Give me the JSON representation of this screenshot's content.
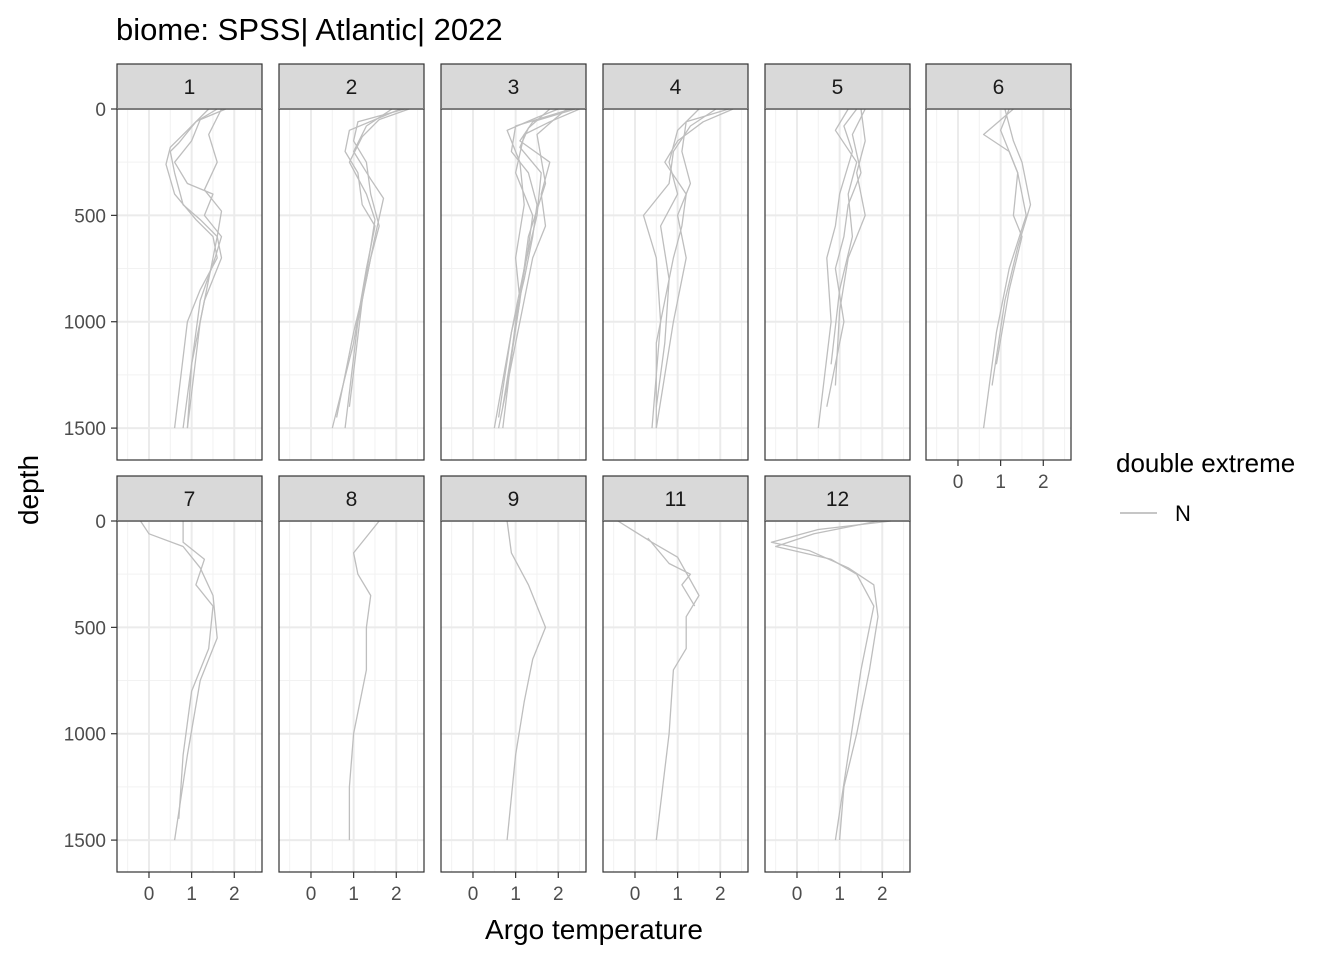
{
  "chart_data": {
    "type": "line",
    "title": "biome: SPSS| Atlantic| 2022",
    "xlabel": "Argo temperature",
    "ylabel": "depth",
    "facet_variable": "month",
    "y_reversed": true,
    "ylim": [
      0,
      1650
    ],
    "xlim": [
      -0.75,
      2.65
    ],
    "x_ticks": [
      0,
      1,
      2
    ],
    "y_ticks": [
      0,
      500,
      1000,
      1500
    ],
    "grid": true,
    "legend": {
      "title": "double extreme",
      "placement": "right",
      "entries": [
        {
          "label": "N",
          "color": "#bebebe"
        }
      ]
    },
    "line_color": "#bebebe",
    "panels": [
      {
        "label": "1",
        "profiles": [
          {
            "x": [
              1.8,
              1.2,
              1.0,
              0.6,
              0.9,
              1.5,
              1.3,
              1.7,
              1.55,
              1.2,
              1.0,
              0.8
            ],
            "y": [
              0,
              50,
              150,
              250,
              350,
              400,
              500,
              600,
              700,
              900,
              1200,
              1500
            ]
          },
          {
            "x": [
              1.6,
              1.1,
              0.7,
              0.5,
              0.6,
              0.8,
              1.2,
              1.6,
              1.7,
              1.3,
              1.0,
              0.9
            ],
            "y": [
              0,
              60,
              160,
              200,
              300,
              450,
              520,
              600,
              700,
              900,
              1200,
              1500
            ]
          },
          {
            "x": [
              1.4,
              0.9,
              0.5,
              0.4,
              0.6,
              1.1,
              1.5,
              1.6,
              1.2,
              0.9,
              0.6
            ],
            "y": [
              0,
              100,
              180,
              260,
              400,
              520,
              600,
              700,
              850,
              1000,
              1500
            ]
          },
          {
            "x": [
              1.7,
              1.4,
              1.6,
              1.3,
              1.7,
              1.6,
              1.5,
              1.2,
              0.9
            ],
            "y": [
              0,
              120,
              250,
              380,
              480,
              600,
              700,
              1000,
              1500
            ]
          }
        ]
      },
      {
        "label": "2",
        "profiles": [
          {
            "x": [
              2.2,
              1.1,
              1.0,
              1.3,
              1.4,
              1.6,
              1.4,
              1.1,
              0.8
            ],
            "y": [
              0,
              60,
              150,
              250,
              400,
              550,
              700,
              1000,
              1500
            ]
          },
          {
            "x": [
              2.1,
              0.9,
              0.8,
              1.1,
              1.2,
              1.5,
              1.3,
              1.0,
              0.5
            ],
            "y": [
              0,
              100,
              200,
              300,
              450,
              550,
              750,
              1100,
              1500
            ]
          },
          {
            "x": [
              1.9,
              1.3,
              1.0,
              1.4,
              1.7,
              1.5,
              1.3,
              1.0,
              0.6
            ],
            "y": [
              0,
              80,
              200,
              330,
              420,
              600,
              800,
              1050,
              1450
            ]
          },
          {
            "x": [
              2.3,
              1.6,
              1.2,
              0.9,
              1.3,
              1.5,
              1.2,
              0.9
            ],
            "y": [
              0,
              50,
              130,
              250,
              400,
              520,
              900,
              1400
            ]
          }
        ]
      },
      {
        "label": "3",
        "profiles": [
          {
            "x": [
              2.4,
              1.4,
              1.1,
              1.8,
              1.6,
              1.7,
              1.4,
              1.1,
              0.6
            ],
            "y": [
              0,
              60,
              150,
              250,
              400,
              550,
              700,
              1000,
              1500
            ]
          },
          {
            "x": [
              2.3,
              1.0,
              0.9,
              1.3,
              1.5,
              1.4,
              1.2,
              0.9,
              0.5
            ],
            "y": [
              0,
              80,
              200,
              300,
              450,
              600,
              800,
              1050,
              1500
            ]
          },
          {
            "x": [
              2.0,
              1.5,
              0.8,
              1.1,
              1.2,
              1.0,
              1.1,
              0.7
            ],
            "y": [
              0,
              40,
              100,
              250,
              450,
              700,
              900,
              1400
            ]
          },
          {
            "x": [
              2.5,
              1.8,
              1.2,
              1.0,
              1.4,
              1.3,
              1.0,
              0.7
            ],
            "y": [
              0,
              60,
              120,
              300,
              500,
              650,
              1000,
              1500
            ]
          },
          {
            "x": [
              1.8,
              1.3,
              1.1,
              1.6,
              1.5,
              1.2,
              0.9,
              0.6
            ],
            "y": [
              0,
              90,
              180,
              300,
              500,
              750,
              1050,
              1450
            ]
          },
          {
            "x": [
              2.2,
              1.9,
              1.5,
              1.7,
              1.3,
              1.1,
              0.8
            ],
            "y": [
              0,
              50,
              120,
              350,
              600,
              900,
              1300
            ]
          }
        ]
      },
      {
        "label": "4",
        "profiles": [
          {
            "x": [
              2.3,
              1.6,
              1.0,
              0.7,
              1.2,
              1.1,
              0.9,
              0.5,
              0.5
            ],
            "y": [
              0,
              60,
              150,
              250,
              400,
              550,
              700,
              1100,
              1500
            ]
          },
          {
            "x": [
              1.9,
              1.3,
              0.9,
              0.8,
              0.2,
              0.5,
              0.6,
              0.4
            ],
            "y": [
              0,
              80,
              200,
              350,
              500,
              700,
              1000,
              1500
            ]
          },
          {
            "x": [
              1.5,
              1.0,
              0.8,
              1.0,
              0.6,
              0.8,
              0.7,
              0.5
            ],
            "y": [
              0,
              100,
              250,
              400,
              550,
              800,
              1100,
              1400
            ]
          },
          {
            "x": [
              2.2,
              1.2,
              1.1,
              1.3,
              1.0,
              1.2,
              0.9,
              0.5
            ],
            "y": [
              0,
              60,
              200,
              350,
              500,
              700,
              1000,
              1500
            ]
          }
        ]
      },
      {
        "label": "5",
        "profiles": [
          {
            "x": [
              1.4,
              1.1,
              1.3,
              1.0,
              0.9,
              0.7,
              0.8,
              0.5
            ],
            "y": [
              0,
              80,
              200,
              400,
              550,
              700,
              1000,
              1500
            ]
          },
          {
            "x": [
              1.6,
              1.3,
              1.5,
              1.2,
              1.1,
              0.9,
              1.1,
              0.7
            ],
            "y": [
              0,
              120,
              300,
              450,
              600,
              750,
              1000,
              1400
            ]
          },
          {
            "x": [
              1.2,
              0.9,
              1.4,
              1.2,
              1.3,
              1.0,
              0.8
            ],
            "y": [
              0,
              100,
              250,
              400,
              600,
              850,
              1200
            ]
          },
          {
            "x": [
              1.5,
              1.6,
              1.4,
              1.6,
              1.2,
              1.0,
              0.9
            ],
            "y": [
              0,
              150,
              300,
              500,
              700,
              950,
              1300
            ]
          }
        ]
      },
      {
        "label": "6",
        "profiles": [
          {
            "x": [
              1.3,
              0.6,
              1.2,
              1.4,
              1.6,
              1.2,
              0.9,
              0.6
            ],
            "y": [
              0,
              120,
              200,
              300,
              500,
              750,
              1050,
              1500
            ]
          },
          {
            "x": [
              1.1,
              1.3,
              1.5,
              1.7,
              1.4,
              1.1,
              0.8
            ],
            "y": [
              0,
              150,
              250,
              450,
              650,
              900,
              1300
            ]
          },
          {
            "x": [
              1.2,
              1.0,
              1.4,
              1.3,
              1.5,
              1.2,
              0.9
            ],
            "y": [
              0,
              100,
              300,
              500,
              600,
              850,
              1200
            ]
          }
        ]
      },
      {
        "label": "7",
        "profiles": [
          {
            "x": [
              -0.2,
              0.0,
              0.8,
              1.2,
              1.5,
              1.6,
              1.2,
              0.9,
              0.6
            ],
            "y": [
              0,
              60,
              120,
              220,
              350,
              550,
              750,
              1100,
              1500
            ]
          },
          {
            "x": [
              0.8,
              0.8,
              1.3,
              1.1,
              1.5,
              1.4,
              1.0,
              0.8,
              0.7
            ],
            "y": [
              0,
              100,
              180,
              300,
              400,
              600,
              800,
              1100,
              1400
            ]
          }
        ]
      },
      {
        "label": "8",
        "profiles": [
          {
            "x": [
              1.6,
              1.0,
              1.1,
              1.4,
              1.3,
              1.3,
              1.0,
              0.9,
              0.9
            ],
            "y": [
              0,
              150,
              250,
              350,
              500,
              700,
              1000,
              1250,
              1500
            ]
          }
        ]
      },
      {
        "label": "9",
        "profiles": [
          {
            "x": [
              0.8,
              0.9,
              1.3,
              1.7,
              1.4,
              1.2,
              1.0,
              0.8
            ],
            "y": [
              0,
              150,
              300,
              500,
              650,
              850,
              1100,
              1500
            ]
          }
        ]
      },
      {
        "label": "11",
        "profiles": [
          {
            "x": [
              -0.4,
              0.4,
              1.0,
              1.5,
              1.2,
              1.2,
              0.9,
              0.8,
              0.5
            ],
            "y": [
              0,
              100,
              170,
              350,
              450,
              600,
              700,
              1000,
              1500
            ]
          },
          {
            "x": [
              0.3,
              0.8,
              1.3,
              1.1,
              1.4
            ],
            "y": [
              80,
              200,
              250,
              300,
              400
            ]
          }
        ]
      },
      {
        "label": "12",
        "profiles": [
          {
            "x": [
              2.2,
              0.5,
              -0.6,
              0.3,
              1.2,
              1.8,
              1.9,
              1.7,
              1.4,
              1.1,
              1.0
            ],
            "y": [
              0,
              40,
              100,
              140,
              220,
              300,
              450,
              700,
              1000,
              1250,
              1500
            ]
          },
          {
            "x": [
              1.9,
              0.4,
              -0.5,
              0.8,
              1.4,
              1.8,
              1.5,
              1.2,
              0.9
            ],
            "y": [
              0,
              60,
              120,
              180,
              250,
              400,
              700,
              1100,
              1500
            ]
          }
        ]
      }
    ]
  }
}
